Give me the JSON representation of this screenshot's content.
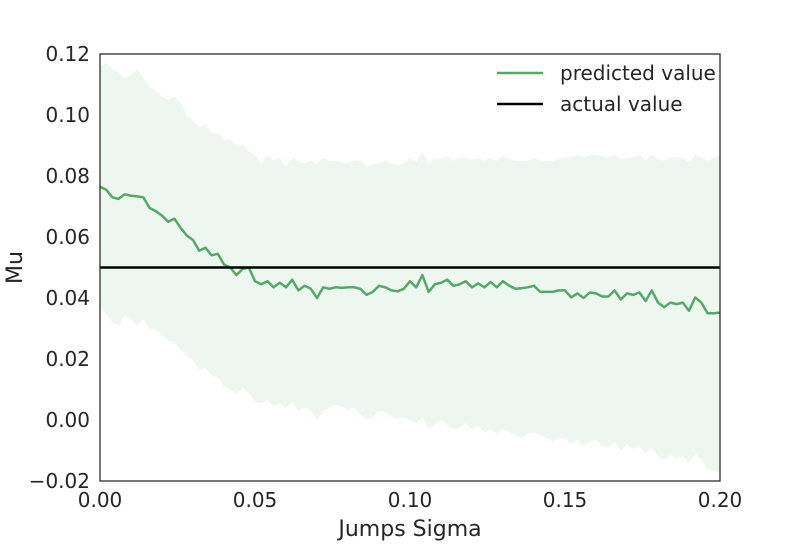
{
  "chart_data": {
    "type": "line",
    "title": "",
    "xlabel": "Jumps Sigma",
    "ylabel": "Mu",
    "xlim": [
      0.0,
      0.2
    ],
    "ylim": [
      -0.02,
      0.12
    ],
    "x_ticks": [
      "0.00",
      "0.05",
      "0.10",
      "0.15",
      "0.20"
    ],
    "y_ticks": [
      "−0.02",
      "0.00",
      "0.02",
      "0.04",
      "0.06",
      "0.08",
      "0.10",
      "0.12"
    ],
    "grid": false,
    "legend_position": "top-right",
    "series": [
      {
        "name": "predicted value",
        "color": "#55a868",
        "x": [
          0.0,
          0.002,
          0.004,
          0.006,
          0.008,
          0.01,
          0.012,
          0.014,
          0.016,
          0.018,
          0.02,
          0.022,
          0.024,
          0.026,
          0.028,
          0.03,
          0.032,
          0.034,
          0.036,
          0.038,
          0.04,
          0.042,
          0.044,
          0.046,
          0.048,
          0.05,
          0.052,
          0.054,
          0.056,
          0.058,
          0.06,
          0.062,
          0.064,
          0.066,
          0.068,
          0.07,
          0.072,
          0.074,
          0.076,
          0.078,
          0.08,
          0.082,
          0.084,
          0.086,
          0.088,
          0.09,
          0.092,
          0.094,
          0.096,
          0.098,
          0.1,
          0.102,
          0.104,
          0.106,
          0.108,
          0.11,
          0.112,
          0.114,
          0.116,
          0.118,
          0.12,
          0.122,
          0.124,
          0.126,
          0.128,
          0.13,
          0.132,
          0.134,
          0.136,
          0.138,
          0.14,
          0.142,
          0.144,
          0.146,
          0.148,
          0.15,
          0.152,
          0.154,
          0.156,
          0.158,
          0.16,
          0.162,
          0.164,
          0.166,
          0.168,
          0.17,
          0.172,
          0.174,
          0.176,
          0.178,
          0.18,
          0.182,
          0.184,
          0.186,
          0.188,
          0.19,
          0.192,
          0.194,
          0.196,
          0.198,
          0.2
        ],
        "values": [
          0.0765,
          0.0755,
          0.073,
          0.0725,
          0.074,
          0.0735,
          0.0733,
          0.073,
          0.0695,
          0.0685,
          0.067,
          0.065,
          0.066,
          0.063,
          0.0605,
          0.059,
          0.0555,
          0.0565,
          0.054,
          0.0545,
          0.051,
          0.05,
          0.0475,
          0.0495,
          0.05,
          0.0455,
          0.0445,
          0.0455,
          0.0435,
          0.045,
          0.0435,
          0.046,
          0.0425,
          0.044,
          0.043,
          0.04,
          0.0435,
          0.043,
          0.0435,
          0.0433,
          0.0435,
          0.0435,
          0.043,
          0.041,
          0.042,
          0.044,
          0.0435,
          0.0425,
          0.0422,
          0.043,
          0.0455,
          0.0435,
          0.0475,
          0.042,
          0.0445,
          0.045,
          0.046,
          0.044,
          0.0445,
          0.0455,
          0.0435,
          0.0448,
          0.0435,
          0.0452,
          0.0435,
          0.0455,
          0.044,
          0.043,
          0.0432,
          0.0435,
          0.044,
          0.042,
          0.042,
          0.042,
          0.0425,
          0.0425,
          0.0402,
          0.0415,
          0.04,
          0.0418,
          0.0415,
          0.0405,
          0.0405,
          0.0425,
          0.0395,
          0.0415,
          0.041,
          0.0418,
          0.039,
          0.0425,
          0.0385,
          0.037,
          0.0385,
          0.038,
          0.0385,
          0.0358,
          0.0402,
          0.0385,
          0.035,
          0.035,
          0.0352
        ],
        "band_upper": [
          0.116,
          0.117,
          0.115,
          0.114,
          0.112,
          0.113,
          0.115,
          0.112,
          0.109,
          0.108,
          0.106,
          0.105,
          0.106,
          0.104,
          0.1,
          0.098,
          0.096,
          0.097,
          0.094,
          0.094,
          0.092,
          0.092,
          0.09,
          0.09,
          0.088,
          0.087,
          0.084,
          0.087,
          0.085,
          0.086,
          0.083,
          0.086,
          0.085,
          0.084,
          0.085,
          0.084,
          0.086,
          0.085,
          0.085,
          0.0845,
          0.084,
          0.085,
          0.085,
          0.083,
          0.084,
          0.084,
          0.085,
          0.084,
          0.0835,
          0.084,
          0.086,
          0.0845,
          0.088,
          0.084,
          0.086,
          0.0855,
          0.0865,
          0.085,
          0.086,
          0.086,
          0.085,
          0.086,
          0.085,
          0.086,
          0.085,
          0.0865,
          0.0855,
          0.085,
          0.085,
          0.085,
          0.086,
          0.085,
          0.085,
          0.085,
          0.0855,
          0.086,
          0.086,
          0.087,
          0.086,
          0.087,
          0.087,
          0.0865,
          0.086,
          0.087,
          0.0855,
          0.086,
          0.086,
          0.087,
          0.085,
          0.087,
          0.0855,
          0.085,
          0.086,
          0.086,
          0.086,
          0.0845,
          0.087,
          0.086,
          0.085,
          0.086,
          0.087
        ],
        "band_lower": [
          0.037,
          0.0345,
          0.032,
          0.031,
          0.0345,
          0.033,
          0.031,
          0.033,
          0.03,
          0.0295,
          0.028,
          0.026,
          0.0255,
          0.023,
          0.021,
          0.0195,
          0.0165,
          0.017,
          0.0145,
          0.014,
          0.011,
          0.01,
          0.0085,
          0.0105,
          0.009,
          0.006,
          0.0055,
          0.0065,
          0.0045,
          0.0055,
          0.004,
          0.006,
          0.003,
          0.004,
          0.003,
          0.0,
          0.003,
          0.004,
          0.005,
          0.0045,
          0.003,
          0.004,
          0.002,
          0.0,
          0.001,
          0.003,
          0.0025,
          0.001,
          0.0005,
          0.001,
          0.0,
          -0.001,
          0.001,
          -0.003,
          -0.0015,
          0.0,
          -0.0015,
          -0.003,
          -0.0025,
          -0.001,
          -0.003,
          -0.002,
          -0.004,
          -0.003,
          -0.0045,
          -0.003,
          -0.004,
          -0.005,
          -0.006,
          -0.0045,
          -0.004,
          -0.005,
          -0.006,
          -0.007,
          -0.006,
          -0.006,
          -0.008,
          -0.0065,
          -0.0085,
          -0.007,
          -0.0065,
          -0.0085,
          -0.009,
          -0.007,
          -0.01,
          -0.008,
          -0.0095,
          -0.0085,
          -0.011,
          -0.009,
          -0.012,
          -0.013,
          -0.0115,
          -0.0125,
          -0.012,
          -0.014,
          -0.011,
          -0.013,
          -0.016,
          -0.0165,
          -0.0175
        ]
      },
      {
        "name": "actual value",
        "color": "#000000",
        "x": [
          0.0,
          0.2
        ],
        "values": [
          0.05,
          0.05
        ]
      }
    ],
    "band_color": "#55a868"
  }
}
